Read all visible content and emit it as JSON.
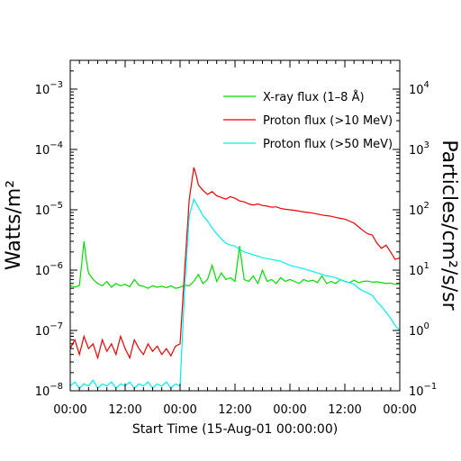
{
  "chart_data": {
    "type": "line",
    "title": "",
    "xlabel": "Start Time (15-Aug-01 00:00:00)",
    "ylabel_left": "Watts/m²",
    "ylabel_right": "Particles/cm²/s/sr",
    "x_unit": "hours since start",
    "xlim": [
      0,
      72
    ],
    "x_ticks": [
      {
        "x": 0,
        "label": "00:00"
      },
      {
        "x": 12,
        "label": "12:00"
      },
      {
        "x": 24,
        "label": "00:00"
      },
      {
        "x": 36,
        "label": "12:00"
      },
      {
        "x": 48,
        "label": "00:00"
      },
      {
        "x": 60,
        "label": "12:00"
      },
      {
        "x": 72,
        "label": "00:00"
      }
    ],
    "y_left": {
      "scale": "log",
      "ylim": [
        1e-08,
        0.003
      ],
      "ticks": [
        {
          "value": 1e-08,
          "base": "10",
          "exp": "−8"
        },
        {
          "value": 1e-07,
          "base": "10",
          "exp": "−7"
        },
        {
          "value": 1e-06,
          "base": "10",
          "exp": "−6"
        },
        {
          "value": 1e-05,
          "base": "10",
          "exp": "−5"
        },
        {
          "value": 0.0001,
          "base": "10",
          "exp": "−4"
        },
        {
          "value": 0.001,
          "base": "10",
          "exp": "−3"
        }
      ]
    },
    "y_right": {
      "scale": "log",
      "ylim": [
        0.1,
        30000
      ],
      "ticks": [
        {
          "value": 0.1,
          "base": "10",
          "exp": "−1"
        },
        {
          "value": 1,
          "base": "10",
          "exp": "0"
        },
        {
          "value": 10,
          "base": "10",
          "exp": "1"
        },
        {
          "value": 100,
          "base": "10",
          "exp": "2"
        },
        {
          "value": 1000,
          "base": "10",
          "exp": "3"
        },
        {
          "value": 10000,
          "base": "10",
          "exp": "4"
        }
      ]
    },
    "legend_position": "top-right",
    "series": [
      {
        "name": "X-ray flux (1–8 Å)",
        "color": "#00dd00",
        "axis": "left",
        "points": [
          [
            0,
            5.5e-07
          ],
          [
            1,
            5.2e-07
          ],
          [
            2,
            5.6e-07
          ],
          [
            3,
            3e-06
          ],
          [
            3.5,
            1.5e-06
          ],
          [
            4,
            9e-07
          ],
          [
            5,
            7e-07
          ],
          [
            6,
            6e-07
          ],
          [
            7,
            5.5e-07
          ],
          [
            8,
            6.5e-07
          ],
          [
            9,
            5.2e-07
          ],
          [
            10,
            6e-07
          ],
          [
            11,
            5.5e-07
          ],
          [
            12,
            5.8e-07
          ],
          [
            13,
            5.3e-07
          ],
          [
            14,
            7e-07
          ],
          [
            15,
            5.6e-07
          ],
          [
            16,
            5.4e-07
          ],
          [
            17,
            5e-07
          ],
          [
            18,
            5.5e-07
          ],
          [
            19,
            5.2e-07
          ],
          [
            20,
            5.4e-07
          ],
          [
            21,
            5.1e-07
          ],
          [
            22,
            5.5e-07
          ],
          [
            23,
            5e-07
          ],
          [
            24,
            5.2e-07
          ],
          [
            25,
            5.6e-07
          ],
          [
            26,
            5.5e-07
          ],
          [
            27,
            6.5e-07
          ],
          [
            28,
            8.5e-07
          ],
          [
            29,
            6e-07
          ],
          [
            30,
            7e-07
          ],
          [
            31,
            1.2e-06
          ],
          [
            32,
            6.5e-07
          ],
          [
            33,
            9e-07
          ],
          [
            34,
            7e-07
          ],
          [
            35,
            7.5e-07
          ],
          [
            36,
            6.5e-07
          ],
          [
            37,
            2.5e-06
          ],
          [
            38,
            7e-07
          ],
          [
            39,
            6.5e-07
          ],
          [
            40,
            8e-07
          ],
          [
            41,
            6e-07
          ],
          [
            42,
            1e-06
          ],
          [
            43,
            6.5e-07
          ],
          [
            44,
            7e-07
          ],
          [
            45,
            6e-07
          ],
          [
            46,
            7.5e-07
          ],
          [
            47,
            6.5e-07
          ],
          [
            48,
            7e-07
          ],
          [
            49,
            6.5e-07
          ],
          [
            50,
            6e-07
          ],
          [
            51,
            7e-07
          ],
          [
            52,
            6.5e-07
          ],
          [
            53,
            6.8e-07
          ],
          [
            54,
            6.2e-07
          ],
          [
            55,
            8e-07
          ],
          [
            56,
            6e-07
          ],
          [
            57,
            6.5e-07
          ],
          [
            58,
            6e-07
          ],
          [
            59,
            7e-07
          ],
          [
            60,
            6.5e-07
          ],
          [
            61,
            6.2e-07
          ],
          [
            62,
            6.8e-07
          ],
          [
            63,
            6.2e-07
          ],
          [
            64,
            6.5e-07
          ],
          [
            65,
            6.6e-07
          ],
          [
            66,
            6.3e-07
          ],
          [
            67,
            6.4e-07
          ],
          [
            68,
            6.2e-07
          ],
          [
            69,
            6e-07
          ],
          [
            70,
            6.1e-07
          ],
          [
            71,
            5.8e-07
          ],
          [
            72,
            6e-07
          ]
        ]
      },
      {
        "name": "Proton flux (>10 MeV)",
        "color": "#ee0000",
        "axis": "right",
        "points": [
          [
            0,
            0.5
          ],
          [
            1,
            0.7
          ],
          [
            2,
            0.4
          ],
          [
            3,
            0.8
          ],
          [
            4,
            0.5
          ],
          [
            5,
            0.6
          ],
          [
            6,
            0.35
          ],
          [
            7,
            0.7
          ],
          [
            8,
            0.45
          ],
          [
            9,
            0.6
          ],
          [
            10,
            0.4
          ],
          [
            11,
            0.8
          ],
          [
            12,
            0.5
          ],
          [
            13,
            0.35
          ],
          [
            14,
            0.7
          ],
          [
            15,
            0.5
          ],
          [
            16,
            0.4
          ],
          [
            17,
            0.6
          ],
          [
            18,
            0.45
          ],
          [
            19,
            0.55
          ],
          [
            20,
            0.4
          ],
          [
            21,
            0.5
          ],
          [
            22,
            0.38
          ],
          [
            23,
            0.55
          ],
          [
            24,
            0.6
          ],
          [
            25,
            10
          ],
          [
            26,
            150
          ],
          [
            27,
            500
          ],
          [
            27.5,
            380
          ],
          [
            28,
            260
          ],
          [
            29,
            210
          ],
          [
            30,
            180
          ],
          [
            31,
            200
          ],
          [
            32,
            170
          ],
          [
            33,
            160
          ],
          [
            34,
            150
          ],
          [
            35,
            165
          ],
          [
            36,
            155
          ],
          [
            37,
            140
          ],
          [
            38,
            135
          ],
          [
            39,
            125
          ],
          [
            40,
            120
          ],
          [
            41,
            125
          ],
          [
            42,
            118
          ],
          [
            43,
            115
          ],
          [
            44,
            110
          ],
          [
            45,
            112
          ],
          [
            46,
            105
          ],
          [
            47,
            102
          ],
          [
            48,
            100
          ],
          [
            49,
            98
          ],
          [
            50,
            95
          ],
          [
            51,
            92
          ],
          [
            52,
            90
          ],
          [
            53,
            88
          ],
          [
            54,
            85
          ],
          [
            55,
            82
          ],
          [
            56,
            80
          ],
          [
            57,
            78
          ],
          [
            58,
            75
          ],
          [
            59,
            72
          ],
          [
            60,
            70
          ],
          [
            61,
            65
          ],
          [
            62,
            60
          ],
          [
            63,
            52
          ],
          [
            64,
            45
          ],
          [
            65,
            40
          ],
          [
            66,
            38
          ],
          [
            67,
            28
          ],
          [
            68,
            23
          ],
          [
            69,
            26
          ],
          [
            70,
            20
          ],
          [
            71,
            15
          ],
          [
            72,
            16
          ]
        ]
      },
      {
        "name": "Proton flux (>50 MeV)",
        "color": "#00eeee",
        "axis": "right",
        "points": [
          [
            0,
            0.12
          ],
          [
            1,
            0.14
          ],
          [
            2,
            0.11
          ],
          [
            3,
            0.13
          ],
          [
            4,
            0.12
          ],
          [
            5,
            0.15
          ],
          [
            6,
            0.11
          ],
          [
            7,
            0.13
          ],
          [
            8,
            0.12
          ],
          [
            9,
            0.14
          ],
          [
            10,
            0.11
          ],
          [
            11,
            0.13
          ],
          [
            12,
            0.12
          ],
          [
            13,
            0.14
          ],
          [
            14,
            0.11
          ],
          [
            15,
            0.13
          ],
          [
            16,
            0.12
          ],
          [
            17,
            0.14
          ],
          [
            18,
            0.11
          ],
          [
            19,
            0.13
          ],
          [
            20,
            0.12
          ],
          [
            21,
            0.14
          ],
          [
            22,
            0.11
          ],
          [
            23,
            0.13
          ],
          [
            24,
            0.12
          ],
          [
            25,
            5
          ],
          [
            26,
            80
          ],
          [
            27,
            150
          ],
          [
            28,
            110
          ],
          [
            29,
            80
          ],
          [
            30,
            65
          ],
          [
            31,
            50
          ],
          [
            32,
            40
          ],
          [
            33,
            33
          ],
          [
            34,
            28
          ],
          [
            35,
            26
          ],
          [
            36,
            25
          ],
          [
            37,
            22
          ],
          [
            38,
            20
          ],
          [
            39,
            19
          ],
          [
            40,
            18
          ],
          [
            41,
            17
          ],
          [
            42,
            16
          ],
          [
            43,
            15.5
          ],
          [
            44,
            15
          ],
          [
            45,
            14.5
          ],
          [
            46,
            14
          ],
          [
            47,
            13
          ],
          [
            48,
            12
          ],
          [
            49,
            11.5
          ],
          [
            50,
            11
          ],
          [
            51,
            10.5
          ],
          [
            52,
            10
          ],
          [
            53,
            9.5
          ],
          [
            54,
            9
          ],
          [
            55,
            8.5
          ],
          [
            56,
            8
          ],
          [
            57,
            7.8
          ],
          [
            58,
            7.5
          ],
          [
            59,
            7.0
          ],
          [
            60,
            6.5
          ],
          [
            61,
            6.2
          ],
          [
            62,
            5.8
          ],
          [
            63,
            5.0
          ],
          [
            64,
            4.5
          ],
          [
            65,
            4.2
          ],
          [
            66,
            3.8
          ],
          [
            67,
            3.0
          ],
          [
            68,
            2.5
          ],
          [
            69,
            2.0
          ],
          [
            70,
            1.6
          ],
          [
            71,
            1.2
          ],
          [
            72,
            1.0
          ]
        ]
      }
    ]
  }
}
